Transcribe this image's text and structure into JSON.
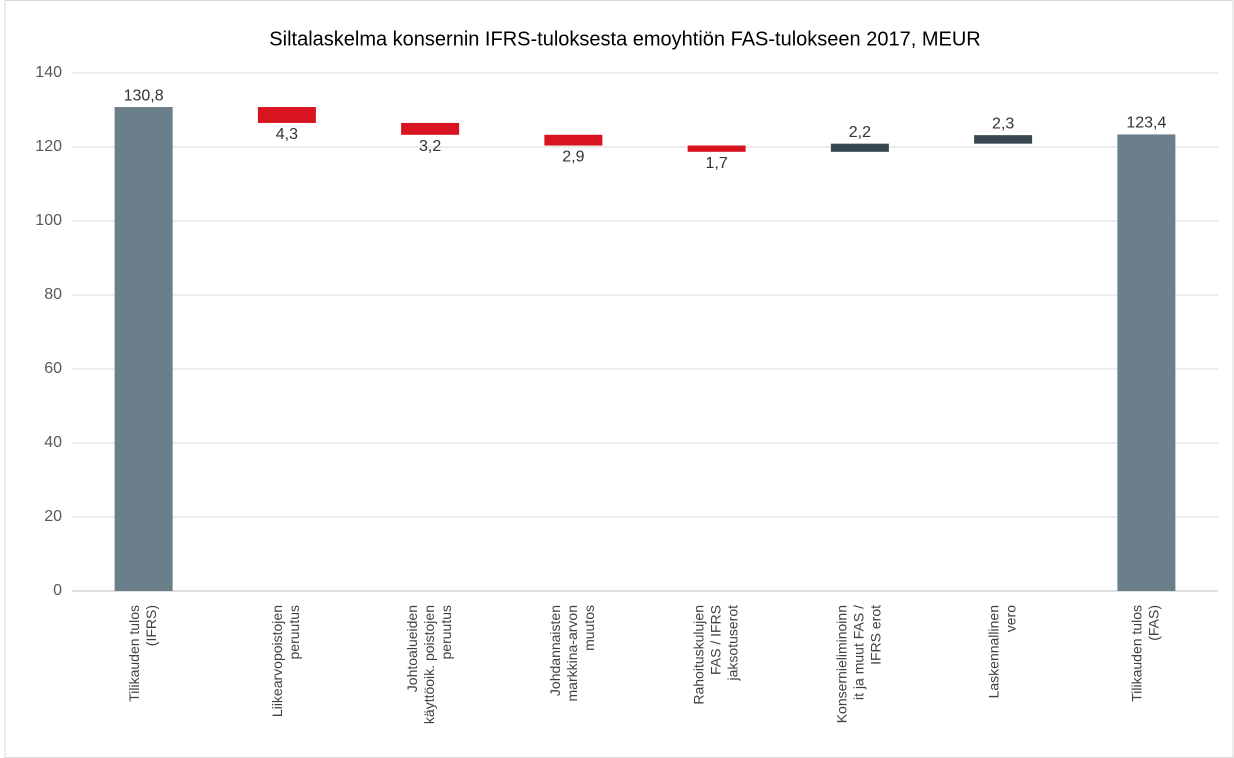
{
  "chart_data": {
    "type": "waterfall",
    "title": "Siltalaskelma konsernin IFRS-tuloksesta emoyhtiön FAS-tulokseen 2017, MEUR",
    "categories": [
      [
        "Tilikauden tulos",
        "(IFRS)"
      ],
      [
        "Liikearvopoistojen",
        "peruutus"
      ],
      [
        "Johtoalueiden",
        "käyttöoik. poistojen",
        "peruutus"
      ],
      [
        "Johdannaisten",
        "markkina-arvon",
        "muutos"
      ],
      [
        "Rahoituskulujen",
        "FAS / IFRS",
        "jaksotuserot"
      ],
      [
        "Konsernieliminoinn",
        "it ja muut FAS /",
        "IFRS erot"
      ],
      [
        "Laskennallinen",
        "vero"
      ],
      [
        "Tilikauden tulos",
        "(FAS)"
      ]
    ],
    "measure": [
      "absolute",
      "decrease",
      "decrease",
      "decrease",
      "decrease",
      "increase",
      "increase",
      "absolute"
    ],
    "values": [
      130.8,
      4.3,
      3.2,
      2.9,
      1.7,
      2.2,
      2.3,
      123.4
    ],
    "value_labels": [
      "130,8",
      "4,3",
      "3,2",
      "2,9",
      "1,7",
      "2,2",
      "2,3",
      "123,4"
    ],
    "colors": {
      "absolute": "#6b7f8b",
      "decrease": "#d7141f",
      "increase": "#36474f"
    },
    "ylim": [
      0,
      140
    ],
    "yticks": [
      0,
      20,
      40,
      60,
      80,
      100,
      120,
      140
    ],
    "grid": true
  }
}
